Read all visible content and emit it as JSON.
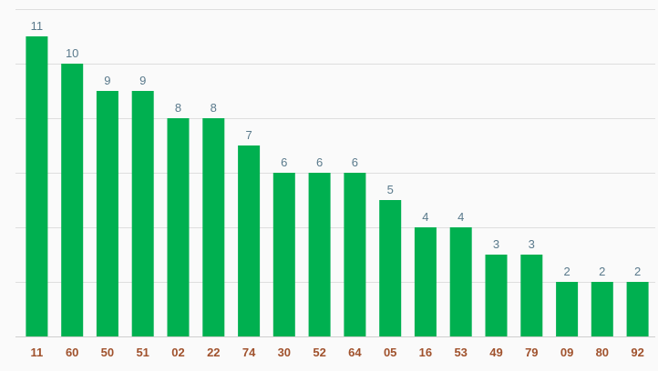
{
  "chart_data": {
    "type": "bar",
    "categories": [
      "11",
      "60",
      "50",
      "51",
      "02",
      "22",
      "74",
      "30",
      "52",
      "64",
      "05",
      "16",
      "53",
      "49",
      "79",
      "09",
      "80",
      "92"
    ],
    "values": [
      11,
      10,
      9,
      9,
      8,
      8,
      7,
      6,
      6,
      6,
      5,
      4,
      4,
      3,
      3,
      2,
      2,
      2
    ],
    "ylim": [
      0,
      12
    ],
    "grid": true,
    "data_labels": true,
    "bar_color": "#00b050",
    "value_label_color": "#5a7a8c",
    "category_label_color": "#a0522d"
  }
}
